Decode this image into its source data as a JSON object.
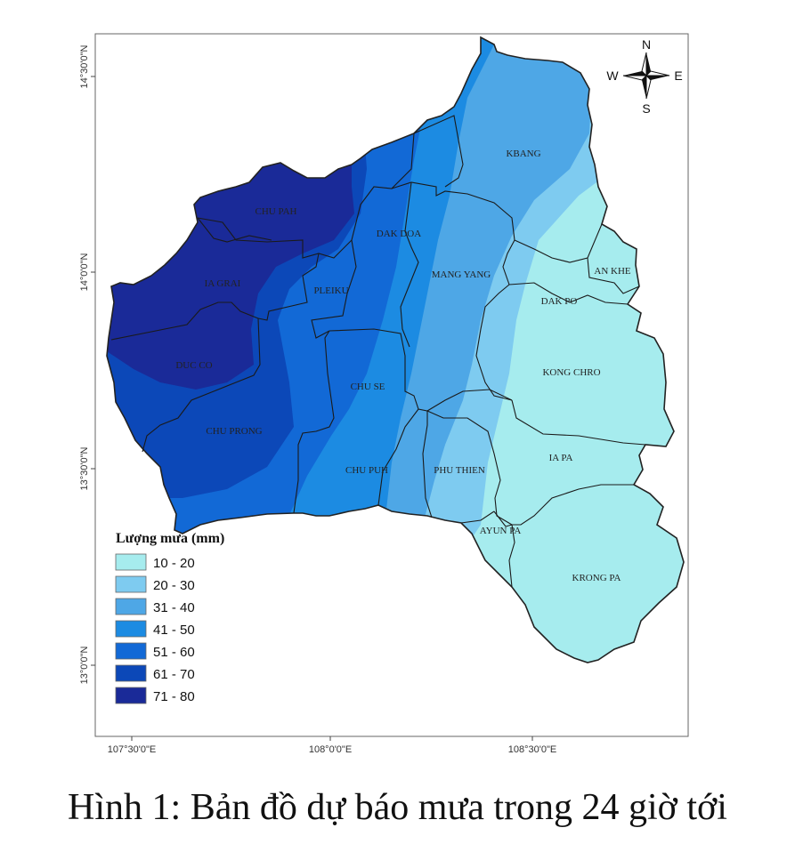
{
  "caption": "Hình 1: Bản đồ dự báo mưa trong 24 giờ tới",
  "legend": {
    "title": "Lượng mưa (mm)",
    "classes": [
      {
        "label": "10 - 20",
        "color": "#a6ecee"
      },
      {
        "label": "20 - 30",
        "color": "#7ecbf0"
      },
      {
        "label": "31 - 40",
        "color": "#4ea7e6"
      },
      {
        "label": "41 - 50",
        "color": "#1c8be2"
      },
      {
        "label": "51 - 60",
        "color": "#1269d6"
      },
      {
        "label": "61 - 70",
        "color": "#0c48b8"
      },
      {
        "label": "71 - 80",
        "color": "#1a2a98"
      }
    ]
  },
  "lat_labels": [
    "14°30'0\"N",
    "14°0'0\"N",
    "13°30'0\"N",
    "13°0'0\"N"
  ],
  "lon_labels": [
    "107°30'0\"E",
    "108°0'0\"E",
    "108°30'0\"E"
  ],
  "compass": {
    "n": "N",
    "s": "S",
    "e": "E",
    "w": "W"
  },
  "districts": [
    {
      "id": "kbang",
      "label": "KBANG"
    },
    {
      "id": "chu-pah",
      "label": "CHU PAH"
    },
    {
      "id": "dak-doa",
      "label": "DAK DOA"
    },
    {
      "id": "ia-grai",
      "label": "IA GRAI"
    },
    {
      "id": "pleiku",
      "label": "PLEIKU"
    },
    {
      "id": "mang-yang",
      "label": "MANG YANG"
    },
    {
      "id": "an-khe",
      "label": "AN KHE"
    },
    {
      "id": "dak-po",
      "label": "DAK PO"
    },
    {
      "id": "duc-co",
      "label": "DUC CO"
    },
    {
      "id": "kong-chro",
      "label": "KONG CHRO"
    },
    {
      "id": "chu-se",
      "label": "CHU SE"
    },
    {
      "id": "chu-prong",
      "label": "CHU PRONG"
    },
    {
      "id": "ia-pa",
      "label": "IA PA"
    },
    {
      "id": "chu-puh",
      "label": "CHU PUH"
    },
    {
      "id": "phu-thien",
      "label": "PHU THIEN"
    },
    {
      "id": "ayun-pa",
      "label": "AYUN PA"
    },
    {
      "id": "krong-pa",
      "label": "KRONG PA"
    }
  ]
}
